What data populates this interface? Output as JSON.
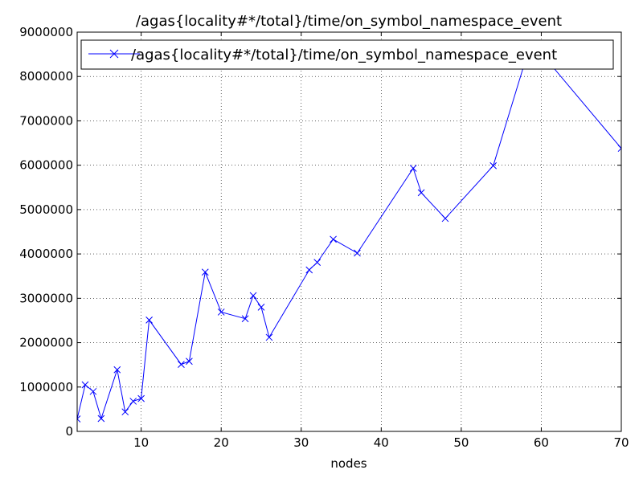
{
  "chart_data": {
    "type": "line",
    "title": "/agas{locality#*/total}/time/on_symbol_namespace_event",
    "xlabel": "nodes",
    "ylabel": "",
    "xlim": [
      2,
      70
    ],
    "ylim": [
      0,
      9000000
    ],
    "xticks": [
      10,
      20,
      30,
      40,
      50,
      60,
      70
    ],
    "yticks": [
      0,
      1000000,
      2000000,
      3000000,
      4000000,
      5000000,
      6000000,
      7000000,
      8000000,
      9000000
    ],
    "grid": true,
    "legend_position": "top-left",
    "series": [
      {
        "name": "/agas{locality#*/total}/time/on_symbol_namespace_event",
        "color": "#0000ff",
        "marker": "x",
        "x": [
          2,
          3,
          4,
          5,
          7,
          8,
          9,
          10,
          11,
          15,
          16,
          18,
          20,
          23,
          24,
          25,
          26,
          31,
          32,
          34,
          37,
          44,
          45,
          48,
          54,
          58,
          61,
          70
        ],
        "y": [
          280000,
          1050000,
          900000,
          290000,
          1390000,
          440000,
          680000,
          740000,
          2510000,
          1510000,
          1580000,
          3590000,
          2690000,
          2540000,
          3060000,
          2800000,
          2120000,
          3640000,
          3810000,
          4330000,
          4020000,
          5930000,
          5380000,
          4800000,
          5990000,
          8350000,
          8310000,
          6380000
        ]
      }
    ]
  }
}
